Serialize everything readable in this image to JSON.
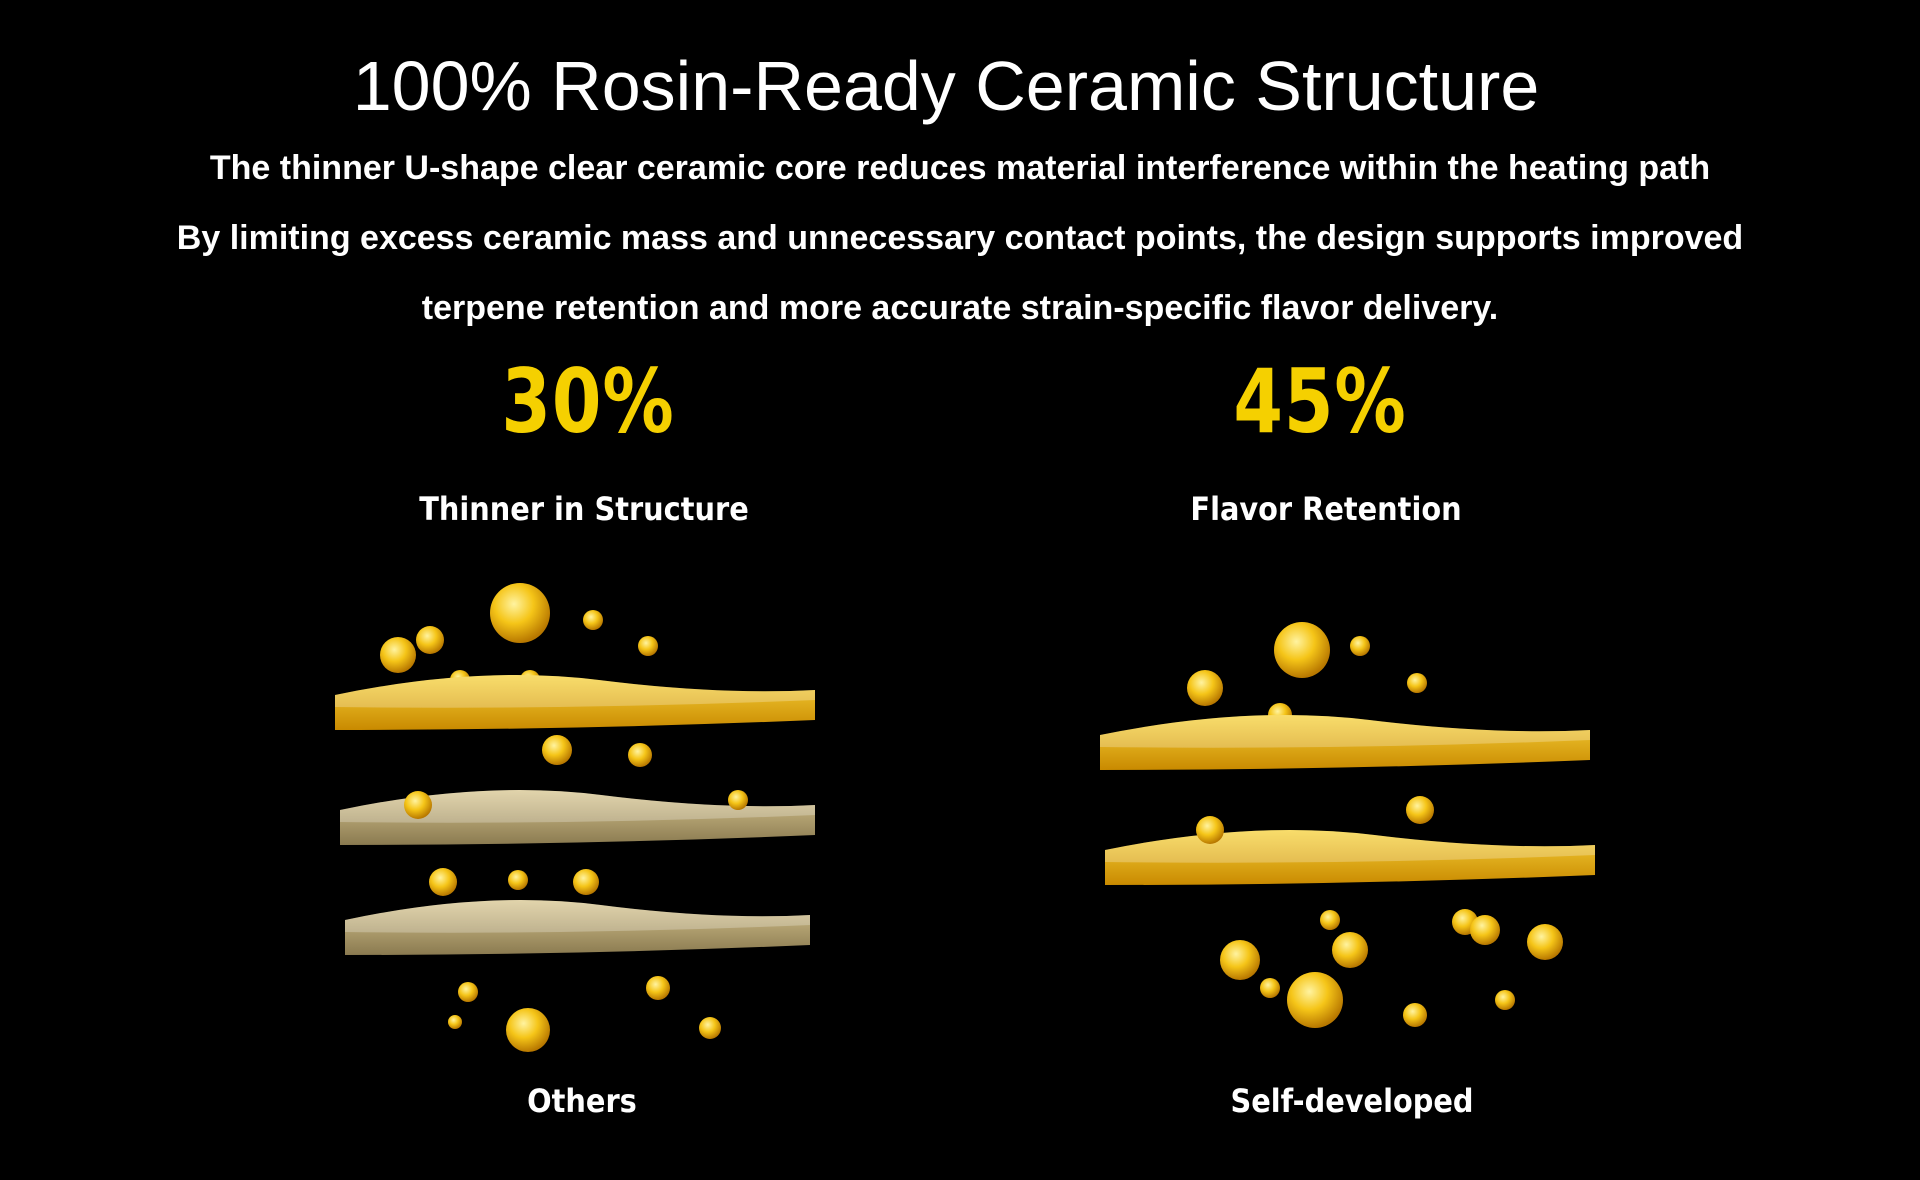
{
  "title": "100% Rosin-Ready Ceramic Structure",
  "description": [
    "The thinner U-shape clear ceramic core reduces material interference within the heating path",
    "By limiting excess ceramic mass and unnecessary contact points, the design supports improved",
    "terpene retention and more accurate strain-specific flavor delivery."
  ],
  "stats": [
    {
      "value": "30%",
      "label": "Thinner in Structure"
    },
    {
      "value": "45%",
      "label": "Flavor Retention"
    }
  ],
  "comparison": [
    {
      "label": "Others",
      "layers": 3
    },
    {
      "label": "Self-developed",
      "layers": 2
    }
  ],
  "colors": {
    "accent": "#f5d000",
    "background": "#000000",
    "oil": "#f2b810"
  }
}
